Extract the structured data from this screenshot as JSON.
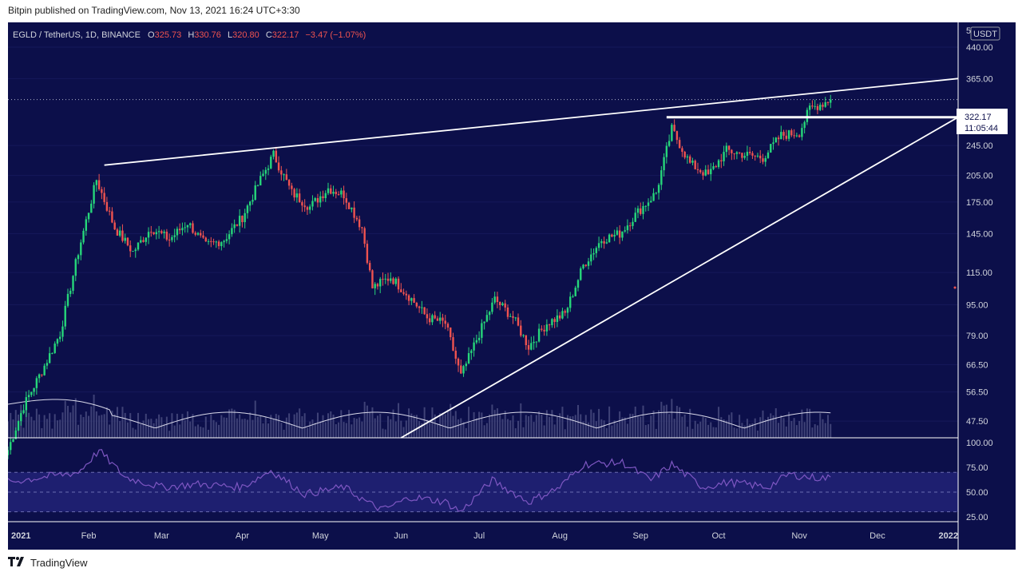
{
  "header": {
    "publish_line": "Bitpin published on TradingView.com, Nov 13, 2021 16:24 UTC+3:30"
  },
  "footer": {
    "brand": "TradingView",
    "logo_icon": "tradingview-logo-icon"
  },
  "legend": {
    "symbol": "EGLD / TetherUS, 1D, BINANCE",
    "open_label": "O",
    "open": "325.73",
    "high_label": "H",
    "high": "330.76",
    "low_label": "L",
    "low": "320.80",
    "close_label": "C",
    "close": "322.17",
    "change": "−3.47 (−1.07%)"
  },
  "colors": {
    "background": "#0c0f4a",
    "up": "#26d67a",
    "down": "#ef5350",
    "trendline": "#ffffff",
    "rsi": "#7e57c2",
    "rsi_band": "#2b2a8a",
    "axis_text": "#d1d4dc",
    "legend_value": "#ef5350"
  },
  "price_axis": {
    "currency_label": "USDT",
    "top_label": "5",
    "labels": [
      "440.00",
      "365.00",
      "245.00",
      "205.00",
      "175.00",
      "145.00",
      "115.00",
      "95.00",
      "79.00",
      "66.50",
      "56.50",
      "47.50"
    ],
    "current_price": "322.17",
    "countdown": "11:05:44"
  },
  "rsi_axis": {
    "labels": [
      "100.00",
      "75.00",
      "50.00",
      "25.00"
    ]
  },
  "time_axis": {
    "labels": [
      "2021",
      "Feb",
      "Mar",
      "Apr",
      "May",
      "Jun",
      "Jul",
      "Aug",
      "Sep",
      "Oct",
      "Nov",
      "Dec",
      "2022"
    ]
  },
  "chart_data": {
    "type": "candlestick",
    "symbol": "EGLD / TetherUS",
    "interval": "1D",
    "exchange": "BINANCE",
    "scale": "log",
    "ylim": [
      43,
      510
    ],
    "price_ticks": [
      440,
      365,
      245,
      205,
      175,
      145,
      115,
      95,
      79,
      66.5,
      56.5,
      47.5
    ],
    "x_range": [
      "2021-01-01",
      "2022-01-01"
    ],
    "last_close": 322.17,
    "close_path": [
      [
        "2021-01-01",
        40
      ],
      [
        "2021-01-07",
        52
      ],
      [
        "2021-01-14",
        64
      ],
      [
        "2021-01-21",
        80
      ],
      [
        "2021-01-28",
        130
      ],
      [
        "2021-02-04",
        200
      ],
      [
        "2021-02-11",
        150
      ],
      [
        "2021-02-18",
        130
      ],
      [
        "2021-02-25",
        150
      ],
      [
        "2021-03-04",
        140
      ],
      [
        "2021-03-11",
        155
      ],
      [
        "2021-03-18",
        135
      ],
      [
        "2021-03-25",
        140
      ],
      [
        "2021-04-01",
        160
      ],
      [
        "2021-04-08",
        200
      ],
      [
        "2021-04-13",
        232
      ],
      [
        "2021-04-20",
        185
      ],
      [
        "2021-04-27",
        170
      ],
      [
        "2021-05-04",
        190
      ],
      [
        "2021-05-10",
        183
      ],
      [
        "2021-05-17",
        150
      ],
      [
        "2021-05-21",
        105
      ],
      [
        "2021-05-28",
        112
      ],
      [
        "2021-06-04",
        100
      ],
      [
        "2021-06-11",
        88
      ],
      [
        "2021-06-18",
        85
      ],
      [
        "2021-06-24",
        62
      ],
      [
        "2021-07-01",
        80
      ],
      [
        "2021-07-07",
        98
      ],
      [
        "2021-07-14",
        88
      ],
      [
        "2021-07-20",
        74
      ],
      [
        "2021-07-27",
        85
      ],
      [
        "2021-08-03",
        90
      ],
      [
        "2021-08-10",
        120
      ],
      [
        "2021-08-17",
        140
      ],
      [
        "2021-08-24",
        145
      ],
      [
        "2021-08-31",
        165
      ],
      [
        "2021-09-07",
        185
      ],
      [
        "2021-09-13",
        270
      ],
      [
        "2021-09-20",
        220
      ],
      [
        "2021-09-27",
        205
      ],
      [
        "2021-10-04",
        238
      ],
      [
        "2021-10-11",
        232
      ],
      [
        "2021-10-18",
        228
      ],
      [
        "2021-10-25",
        260
      ],
      [
        "2021-11-01",
        265
      ],
      [
        "2021-11-05",
        305
      ],
      [
        "2021-11-10",
        315
      ],
      [
        "2021-11-13",
        322.17
      ]
    ],
    "annotations": [
      {
        "type": "trendline",
        "from": [
          "2021-02-07",
          218
        ],
        "to": [
          "2022-01-01",
          365
        ],
        "extended": true
      },
      {
        "type": "trendline",
        "from": [
          "2021-06-01",
          43
        ],
        "to": [
          "2022-01-01",
          290
        ],
        "extended": true
      },
      {
        "type": "horizontal_segment",
        "from": [
          "2021-09-11",
          290
        ],
        "to": [
          "2022-01-01",
          290
        ]
      }
    ],
    "rsi": {
      "ylim": [
        20,
        105
      ],
      "ticks": [
        100,
        75,
        50,
        25
      ],
      "band": [
        30,
        70
      ],
      "midline": 50,
      "path": [
        [
          "2021-01-01",
          60
        ],
        [
          "2021-01-14",
          65
        ],
        [
          "2021-01-28",
          70
        ],
        [
          "2021-02-05",
          92
        ],
        [
          "2021-02-15",
          65
        ],
        [
          "2021-03-01",
          55
        ],
        [
          "2021-03-15",
          58
        ],
        [
          "2021-04-01",
          55
        ],
        [
          "2021-04-12",
          72
        ],
        [
          "2021-04-25",
          48
        ],
        [
          "2021-05-10",
          55
        ],
        [
          "2021-05-20",
          38
        ],
        [
          "2021-05-25",
          32
        ],
        [
          "2021-06-05",
          45
        ],
        [
          "2021-06-18",
          40
        ],
        [
          "2021-06-24",
          30
        ],
        [
          "2021-07-06",
          62
        ],
        [
          "2021-07-20",
          40
        ],
        [
          "2021-08-01",
          55
        ],
        [
          "2021-08-10",
          78
        ],
        [
          "2021-08-25",
          80
        ],
        [
          "2021-09-05",
          62
        ],
        [
          "2021-09-13",
          78
        ],
        [
          "2021-09-25",
          55
        ],
        [
          "2021-10-05",
          60
        ],
        [
          "2021-10-20",
          55
        ],
        [
          "2021-10-28",
          68
        ],
        [
          "2021-11-05",
          65
        ],
        [
          "2021-11-13",
          64
        ]
      ]
    }
  }
}
